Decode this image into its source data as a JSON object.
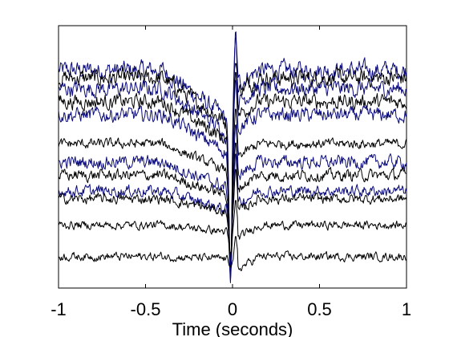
{
  "chart_data": {
    "type": "line",
    "title": "",
    "xlabel": "Time (seconds)",
    "ylabel": "",
    "xlim": [
      -1,
      1
    ],
    "ylim": [
      0,
      10
    ],
    "grid": false,
    "x_ticks": [
      -1,
      -0.5,
      0,
      0.5,
      1
    ],
    "x_tick_labels": [
      "-1",
      "-0.5",
      "0",
      "0.5",
      "1"
    ],
    "series_colors": [
      "#0a0a7a",
      "#000000"
    ],
    "series": [
      {
        "color": "#0a0a7a",
        "offset": 8.3,
        "spike_up": 9.6,
        "spike_down": 0.3,
        "noise": 0.55
      },
      {
        "color": "#000000",
        "offset": 8.0,
        "spike_up": 8.6,
        "spike_down": 0.6,
        "noise": 0.5
      },
      {
        "color": "#0a0a7a",
        "offset": 7.6,
        "spike_up": 9.9,
        "spike_down": 0.2,
        "noise": 0.5
      },
      {
        "color": "#000000",
        "offset": 7.1,
        "spike_up": 8.3,
        "spike_down": 0.8,
        "noise": 0.45
      },
      {
        "color": "#0a0a7a",
        "offset": 6.6,
        "spike_up": 8.0,
        "spike_down": 0.4,
        "noise": 0.45
      },
      {
        "color": "#000000",
        "offset": 5.5,
        "spike_up": 6.9,
        "spike_down": 1.0,
        "noise": 0.3
      },
      {
        "color": "#0a0a7a",
        "offset": 4.8,
        "spike_up": 6.3,
        "spike_down": 0.5,
        "noise": 0.4
      },
      {
        "color": "#000000",
        "offset": 4.3,
        "spike_up": 5.6,
        "spike_down": 1.1,
        "noise": 0.35
      },
      {
        "color": "#0a0a7a",
        "offset": 3.7,
        "spike_up": 5.2,
        "spike_down": 0.6,
        "noise": 0.35
      },
      {
        "color": "#000000",
        "offset": 3.4,
        "spike_up": 4.6,
        "spike_down": 1.2,
        "noise": 0.3
      },
      {
        "color": "#000000",
        "offset": 2.4,
        "spike_up": 3.4,
        "spike_down": 1.3,
        "noise": 0.25
      },
      {
        "color": "#000000",
        "offset": 1.2,
        "spike_up": 2.0,
        "spike_down": 0.8,
        "noise": 0.25
      }
    ]
  }
}
